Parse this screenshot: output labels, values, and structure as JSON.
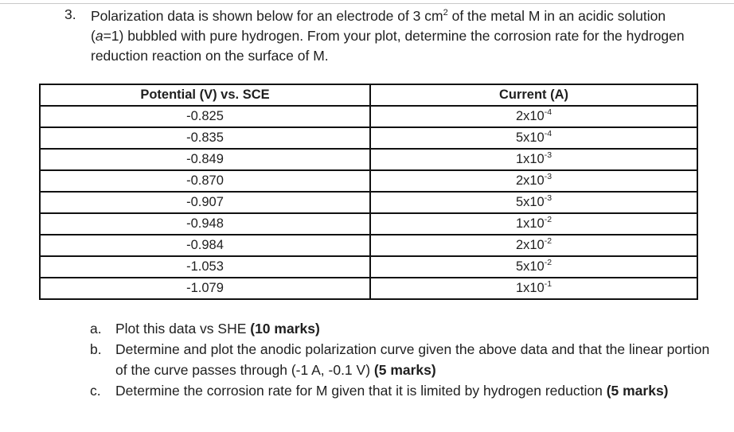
{
  "question": {
    "number": "3.",
    "text_before_sup": "Polarization data is shown below for an electrode of 3 cm",
    "sup": "2",
    "text_after_sup_1": " of the metal M in an acidic solution (",
    "activity_symbol": "a",
    "text_after_sup_2": "=1) bubbled with pure hydrogen. From your plot, determine the corrosion rate for the hydrogen reduction reaction on the surface of M."
  },
  "table": {
    "headers": [
      "Potential (V) vs. SCE",
      "Current (A)"
    ],
    "rows": [
      {
        "potential": "-0.825",
        "current_base": "2x10",
        "current_exp": "-4"
      },
      {
        "potential": "-0.835",
        "current_base": "5x10",
        "current_exp": "-4"
      },
      {
        "potential": "-0.849",
        "current_base": "1x10",
        "current_exp": "-3"
      },
      {
        "potential": "-0.870",
        "current_base": "2x10",
        "current_exp": "-3"
      },
      {
        "potential": "-0.907",
        "current_base": "5x10",
        "current_exp": "-3"
      },
      {
        "potential": "-0.948",
        "current_base": "1x10",
        "current_exp": "-2"
      },
      {
        "potential": "-0.984",
        "current_base": "2x10",
        "current_exp": "-2"
      },
      {
        "potential": "-1.053",
        "current_base": "5x10",
        "current_exp": "-2"
      },
      {
        "potential": "-1.079",
        "current_base": "1x10",
        "current_exp": "-1"
      }
    ]
  },
  "parts": [
    {
      "label": "a.",
      "text": "Plot this data vs SHE ",
      "marks": "(10 marks)"
    },
    {
      "label": "b.",
      "text": "Determine and plot the anodic polarization curve given the above data and that the linear portion of the curve passes through (-1 A, -0.1 V) ",
      "marks": "(5 marks)"
    },
    {
      "label": "c.",
      "text": "Determine the corrosion rate for M given that it is limited by hydrogen reduction ",
      "marks": "(5 marks)"
    }
  ]
}
